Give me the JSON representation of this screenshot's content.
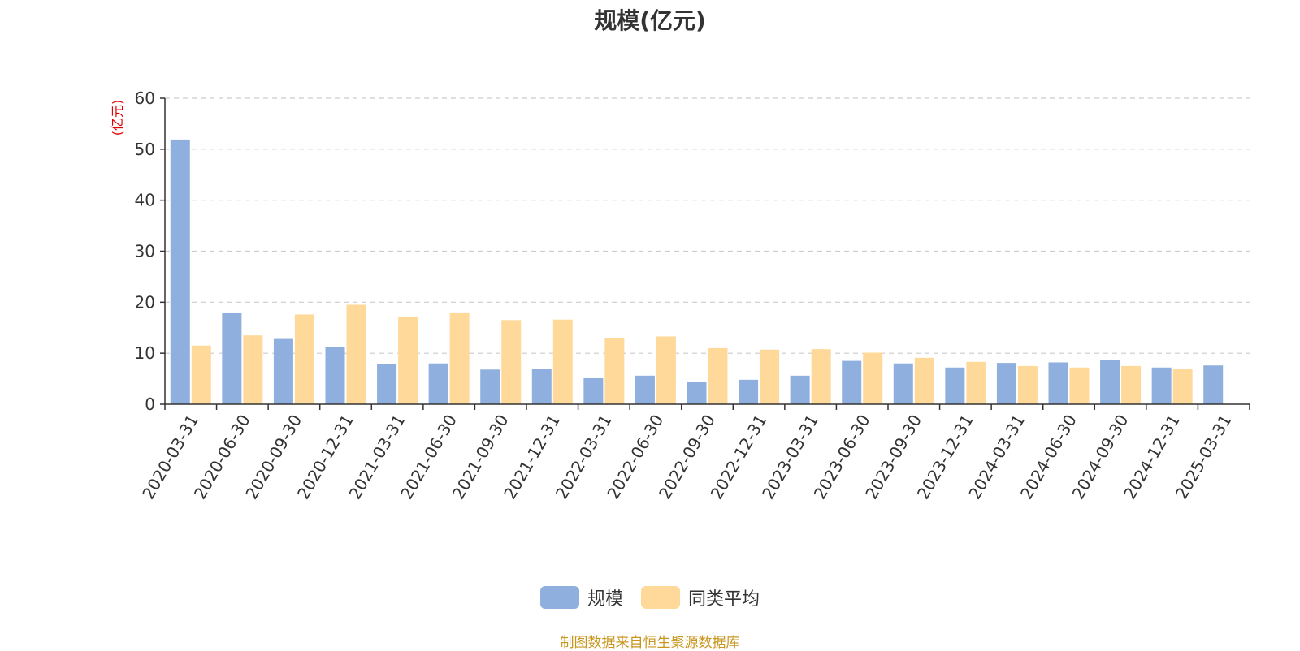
{
  "chart_data": {
    "type": "bar",
    "title": "规模(亿元)",
    "ylabel": "(亿元)",
    "xlabel": "",
    "ylim": [
      0,
      60
    ],
    "yticks": [
      0,
      10,
      20,
      30,
      40,
      50,
      60
    ],
    "grid": true,
    "legend_position": "bottom",
    "categories": [
      "2020-03-31",
      "2020-06-30",
      "2020-09-30",
      "2020-12-31",
      "2021-03-31",
      "2021-06-30",
      "2021-09-30",
      "2021-12-31",
      "2022-03-31",
      "2022-06-30",
      "2022-09-30",
      "2022-12-31",
      "2023-03-31",
      "2023-06-30",
      "2023-09-30",
      "2023-12-31",
      "2024-03-31",
      "2024-06-30",
      "2024-09-30",
      "2024-12-31",
      "2025-03-31"
    ],
    "series": [
      {
        "name": "规模",
        "color": "#8fb0de",
        "values": [
          51.9,
          17.9,
          12.8,
          11.2,
          7.8,
          8.0,
          6.8,
          6.9,
          5.1,
          5.6,
          4.4,
          4.8,
          5.6,
          8.5,
          8.0,
          7.2,
          8.1,
          8.2,
          8.7,
          7.2,
          7.6
        ]
      },
      {
        "name": "同类平均",
        "color": "#ffd99a",
        "values": [
          11.5,
          13.5,
          17.6,
          19.5,
          17.2,
          18.0,
          16.5,
          16.6,
          13.0,
          13.3,
          11.0,
          10.7,
          10.8,
          10.1,
          9.1,
          8.3,
          7.5,
          7.2,
          7.5,
          6.9,
          null
        ]
      }
    ]
  },
  "footer": {
    "source": "制图数据来自恒生聚源数据库"
  }
}
